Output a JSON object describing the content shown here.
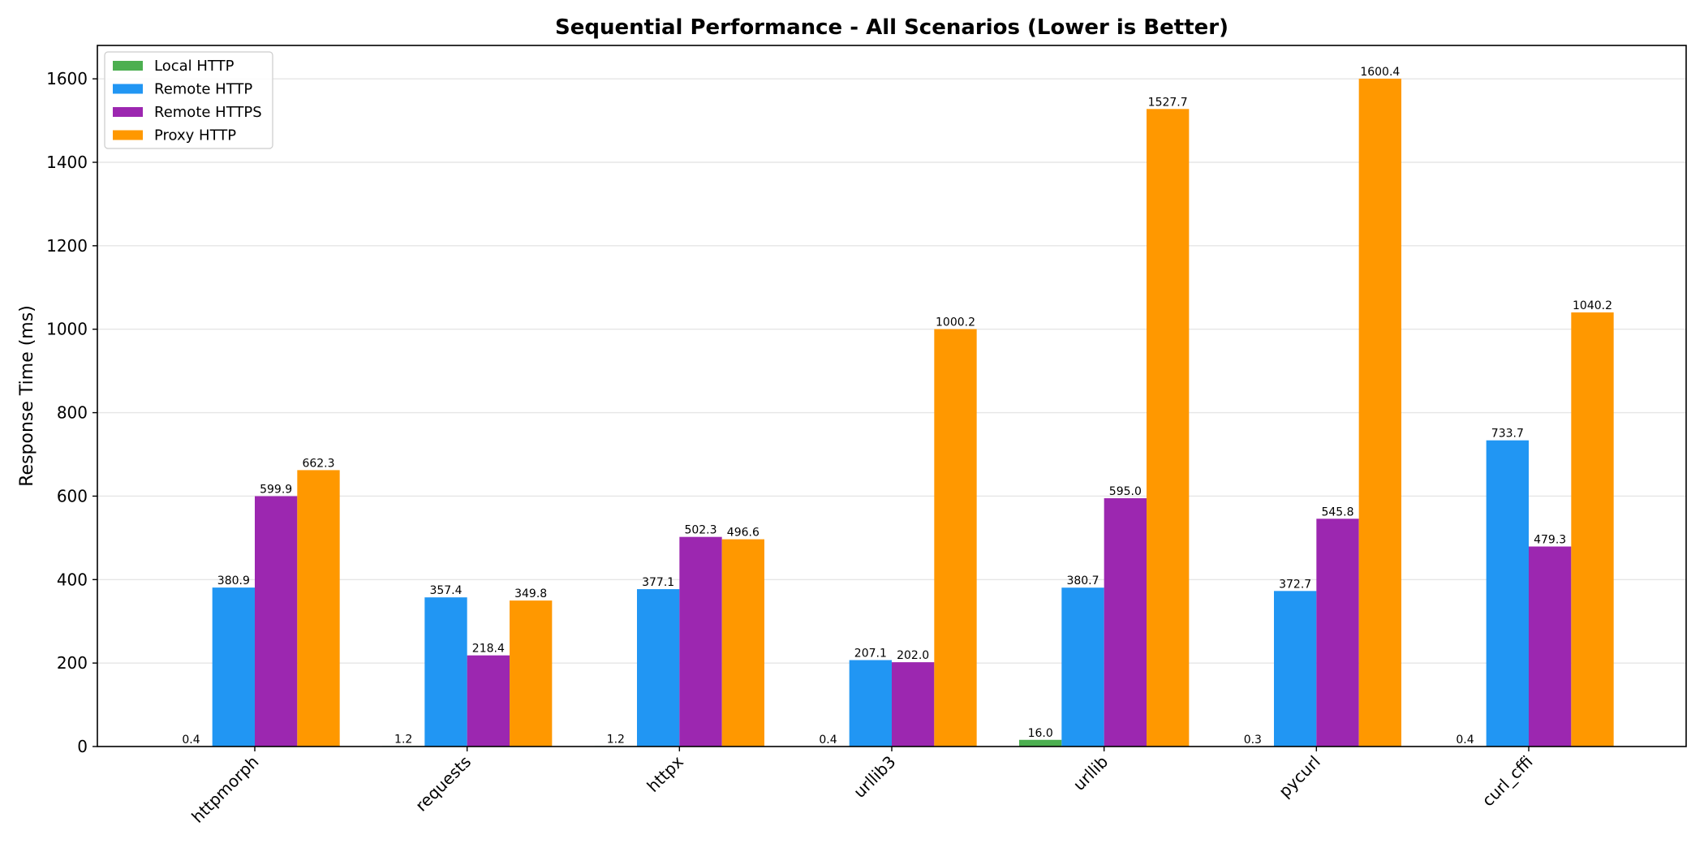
{
  "chart_data": {
    "type": "bar",
    "title": "Sequential Performance - All Scenarios (Lower is Better)",
    "xlabel": "",
    "ylabel": "Response Time (ms)",
    "categories": [
      "httpmorph",
      "requests",
      "httpx",
      "urllib3",
      "urllib",
      "pycurl",
      "curl_cffi"
    ],
    "series": [
      {
        "name": "Local HTTP",
        "color": "#4caf50",
        "values": [
          0.4,
          1.2,
          1.2,
          0.4,
          16.0,
          0.3,
          0.4
        ]
      },
      {
        "name": "Remote HTTP",
        "color": "#2196f3",
        "values": [
          380.9,
          357.4,
          377.1,
          207.1,
          380.7,
          372.7,
          733.7
        ]
      },
      {
        "name": "Remote HTTPS",
        "color": "#9c27b0",
        "values": [
          599.9,
          218.4,
          502.3,
          202.0,
          595.0,
          545.8,
          479.3
        ]
      },
      {
        "name": "Proxy HTTP",
        "color": "#ff9800",
        "values": [
          662.3,
          349.8,
          496.6,
          1000.2,
          1527.7,
          1600.4,
          1040.2
        ]
      }
    ],
    "ylim": [
      0,
      1680
    ],
    "yticks": [
      0,
      200,
      400,
      600,
      800,
      1000,
      1200,
      1400,
      1600
    ],
    "grid": true,
    "legend_position": "top-left",
    "value_format_decimals": 1
  }
}
